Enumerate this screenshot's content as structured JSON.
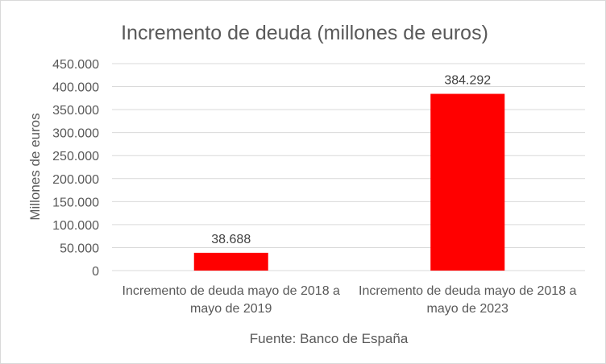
{
  "chart_data": {
    "type": "bar",
    "title": "Incremento de deuda (millones de euros)",
    "ylabel": "Millones de euros",
    "xlabel": "",
    "source": "Fuente: Banco de España",
    "categories": [
      [
        "Incremento de deuda mayo de 2018 a",
        "mayo de 2019"
      ],
      [
        "Incremento de deuda mayo de 2018 a",
        "mayo de 2023"
      ]
    ],
    "values": [
      38688,
      384292
    ],
    "data_labels": [
      "38.688",
      "384.292"
    ],
    "ylim": [
      0,
      450000
    ],
    "yticks": [
      0,
      50000,
      100000,
      150000,
      200000,
      250000,
      300000,
      350000,
      400000,
      450000
    ],
    "ytick_labels": [
      "0",
      "50.000",
      "100.000",
      "150.000",
      "200.000",
      "250.000",
      "300.000",
      "350.000",
      "400.000",
      "450.000"
    ],
    "grid": true,
    "legend": "none",
    "bar_color": "#ff0000",
    "grid_color": "#d9d9d9",
    "text_color": "#595959"
  }
}
